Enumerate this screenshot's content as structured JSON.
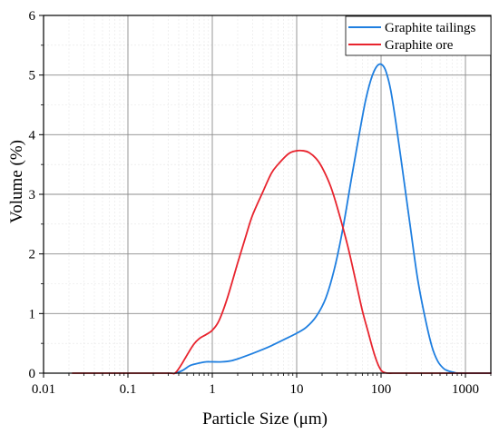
{
  "chart_data": {
    "type": "line",
    "xlabel": "Particle Size (μm)",
    "ylabel": "Volume (%)",
    "xscale": "log",
    "xlim": [
      0.01,
      2000
    ],
    "ylim": [
      0,
      6
    ],
    "xticks": [
      {
        "value": 0.01,
        "label": "0.01"
      },
      {
        "value": 0.1,
        "label": "0.1"
      },
      {
        "value": 1,
        "label": "1"
      },
      {
        "value": 10,
        "label": "10"
      },
      {
        "value": 100,
        "label": "100"
      },
      {
        "value": 1000,
        "label": "1000"
      }
    ],
    "yticks": [
      {
        "value": 0,
        "label": "0"
      },
      {
        "value": 1,
        "label": "1"
      },
      {
        "value": 2,
        "label": "2"
      },
      {
        "value": 3,
        "label": "3"
      },
      {
        "value": 4,
        "label": "4"
      },
      {
        "value": 5,
        "label": "5"
      },
      {
        "value": 6,
        "label": "6"
      }
    ],
    "grid": true,
    "legend_position": "top-right",
    "series": [
      {
        "name": "Graphite tailings",
        "color": "#1f7fe0",
        "x": [
          0.37,
          0.45,
          0.55,
          0.7,
          0.85,
          1.0,
          1.3,
          1.7,
          2.2,
          3,
          4,
          5,
          7,
          10,
          13,
          17,
          22,
          28,
          35,
          45,
          55,
          65,
          75,
          85,
          95,
          105,
          115,
          130,
          150,
          180,
          220,
          270,
          330,
          400,
          470,
          550,
          620,
          700,
          800,
          900,
          1000,
          2000
        ],
        "y": [
          0.0,
          0.05,
          0.13,
          0.17,
          0.19,
          0.19,
          0.19,
          0.21,
          0.26,
          0.33,
          0.4,
          0.46,
          0.56,
          0.67,
          0.77,
          0.95,
          1.25,
          1.75,
          2.4,
          3.3,
          4.0,
          4.55,
          4.9,
          5.1,
          5.18,
          5.16,
          5.05,
          4.75,
          4.2,
          3.4,
          2.5,
          1.6,
          0.95,
          0.45,
          0.2,
          0.08,
          0.04,
          0.02,
          0.0,
          0.0,
          0.0,
          0.0
        ]
      },
      {
        "name": "Graphite ore",
        "color": "#e8242e",
        "x": [
          0.022,
          0.1,
          0.3,
          0.36,
          0.42,
          0.5,
          0.6,
          0.7,
          0.85,
          1.0,
          1.2,
          1.5,
          2.0,
          2.5,
          3,
          4,
          5,
          6,
          8,
          10,
          12,
          14,
          17,
          20,
          25,
          30,
          40,
          50,
          60,
          70,
          80,
          90,
          100,
          110,
          120,
          150,
          200,
          500,
          2000
        ],
        "y": [
          0.0,
          0.0,
          0.0,
          0.0,
          0.12,
          0.3,
          0.48,
          0.58,
          0.65,
          0.72,
          0.88,
          1.25,
          1.85,
          2.3,
          2.65,
          3.05,
          3.35,
          3.5,
          3.68,
          3.73,
          3.73,
          3.7,
          3.6,
          3.45,
          3.15,
          2.8,
          2.15,
          1.55,
          1.05,
          0.7,
          0.4,
          0.18,
          0.05,
          0.01,
          0.0,
          0.0,
          0.0,
          0.0,
          0.0
        ]
      }
    ]
  }
}
